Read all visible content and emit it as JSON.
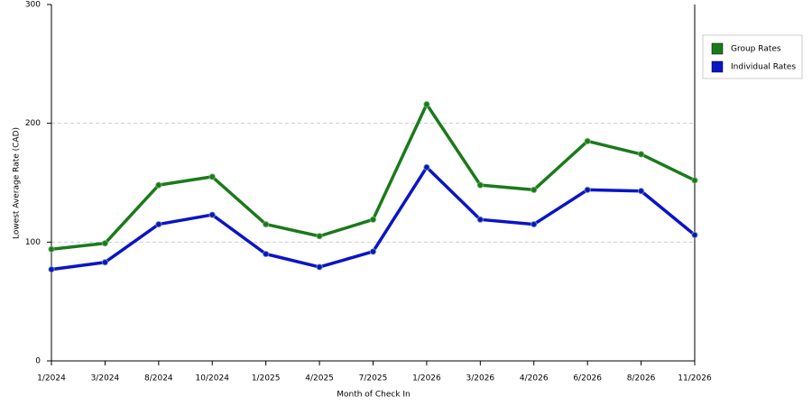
{
  "chart_data": {
    "type": "line",
    "y_label": "Lowest Average Rate (CAD)",
    "x_label": "Month of Check In",
    "categories": [
      "1/2024",
      "3/2024",
      "8/2024",
      "10/2024",
      "1/2025",
      "4/2025",
      "7/2025",
      "1/2026",
      "3/2026",
      "4/2026",
      "6/2026",
      "8/2026",
      "11/2026"
    ],
    "series": [
      {
        "name": "Group Rates",
        "color": "#1a7a1a",
        "values": [
          94,
          99,
          148,
          155,
          115,
          105,
          119,
          216,
          148,
          144,
          185,
          174,
          152
        ]
      },
      {
        "name": "Individual Rates",
        "color": "#0a14c8",
        "values": [
          77,
          83,
          115,
          123,
          90,
          79,
          92,
          163,
          119,
          115,
          144,
          143,
          106
        ]
      }
    ],
    "ylim": [
      0,
      300
    ],
    "yticks": [
      0,
      100,
      200,
      300
    ],
    "grid": true,
    "legend": "right"
  }
}
